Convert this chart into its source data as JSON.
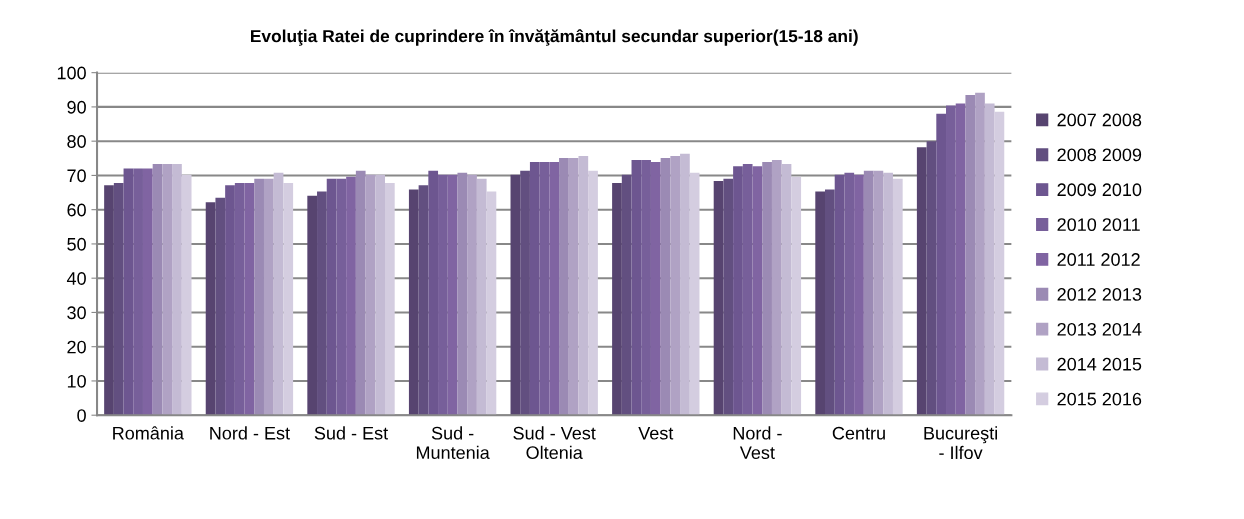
{
  "chart_data": {
    "type": "bar",
    "title": "Evoluţia Ratei de cuprindere în învăţământul secundar superior(15-18 ani)",
    "categories": [
      "România",
      "Nord - Est",
      "Sud - Est",
      "Sud -\nMuntenia",
      "Sud - Vest\nOltenia",
      "Vest",
      "Nord -\nVest",
      "Centru",
      "Bucureşti\n- Ilfov"
    ],
    "series": [
      {
        "name": "2007 2008",
        "color": "#574470",
        "values": [
          67.1,
          62.2,
          64.1,
          65.9,
          70.2,
          67.8,
          68.4,
          65.3,
          78.2
        ]
      },
      {
        "name": "2008 2009",
        "color": "#624f80",
        "values": [
          67.8,
          63.5,
          65.3,
          67.1,
          71.4,
          70.2,
          69.0,
          65.9,
          80.0
        ]
      },
      {
        "name": "2009 2010",
        "color": "#6d5690",
        "values": [
          72.0,
          67.1,
          69.0,
          71.4,
          73.9,
          74.5,
          72.7,
          70.2,
          88.0
        ]
      },
      {
        "name": "2010 2011",
        "color": "#775f9a",
        "values": [
          72.0,
          67.8,
          69.0,
          70.2,
          73.9,
          74.5,
          73.3,
          70.8,
          90.4
        ]
      },
      {
        "name": "2011 2012",
        "color": "#8064a2",
        "values": [
          72.0,
          67.8,
          69.6,
          70.2,
          73.9,
          73.9,
          72.7,
          70.2,
          91.0
        ]
      },
      {
        "name": "2012 2013",
        "color": "#9b8ab4",
        "values": [
          73.3,
          69.0,
          71.4,
          70.8,
          75.1,
          75.1,
          73.9,
          71.4,
          93.5
        ]
      },
      {
        "name": "2013 2014",
        "color": "#b0a2c4",
        "values": [
          73.3,
          69.0,
          70.2,
          70.2,
          75.1,
          75.7,
          74.5,
          71.4,
          94.1
        ]
      },
      {
        "name": "2014 2015",
        "color": "#c4bbd4",
        "values": [
          73.3,
          70.8,
          70.2,
          69.0,
          75.7,
          76.3,
          73.3,
          70.8,
          91.0
        ]
      },
      {
        "name": "2015 2016",
        "color": "#d4cde0",
        "values": [
          70.2,
          67.8,
          67.8,
          65.3,
          71.4,
          70.8,
          69.6,
          69.0,
          88.6
        ]
      }
    ],
    "ylim": [
      0,
      100
    ],
    "yticks": [
      0,
      10,
      20,
      30,
      40,
      50,
      60,
      70,
      80,
      90,
      100
    ],
    "grid": "y",
    "legend": "right"
  }
}
